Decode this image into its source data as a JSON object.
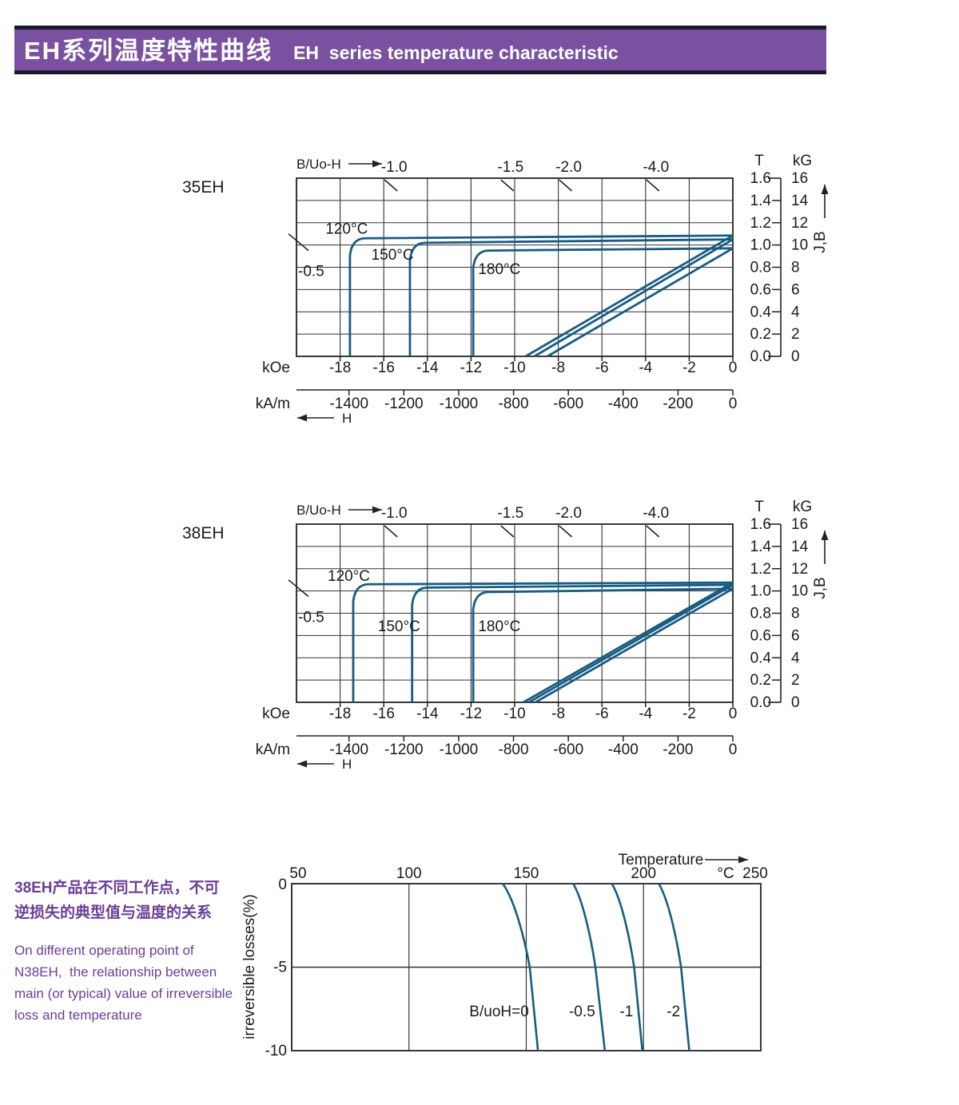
{
  "header": {
    "title_zh": "EH系列温度特性曲线",
    "title_en": "EH  series temperature characteristic"
  },
  "description": {
    "zh_lines": [
      "38EH产品在不同工作点，不可",
      "逆损失的典型值与温度的关系"
    ],
    "en_lines": [
      "On different operating point of",
      "N38EH,  the relationship between",
      "main (or typical) value of irreversible",
      "loss and temperature"
    ]
  },
  "colors": {
    "banner_bg": "#7A51A0",
    "banner_border": "#1A1A2E",
    "curve": "#175C82",
    "grid": "#333333",
    "axis": "#222222",
    "purple_text": "#6B3E98"
  },
  "chart_data": [
    {
      "type": "line",
      "id": "demag-35eh",
      "title": "35EH",
      "top_axis_label": "B/Uo-H",
      "xlim": [
        -20,
        0
      ],
      "ylim": [
        0,
        1.6
      ],
      "x_grid_step_koe": 2,
      "y_grid_step_t": 0.2,
      "load_line_labels": [
        "-1.0",
        "-1.5",
        "-2.0",
        "-4.0"
      ],
      "edge_load_line_label": "-0.5",
      "x_axis": {
        "unit_primary": "kOe",
        "ticks_primary": [
          "-18",
          "-16",
          "-14",
          "-12",
          "-10",
          "-8",
          "-6",
          "-4",
          "-2",
          "0"
        ],
        "unit_secondary": "kA/m",
        "ticks_secondary": [
          "-1400",
          "-1200",
          "-1000",
          "-800",
          "-600",
          "-400",
          "-200",
          "0"
        ],
        "arrow_label": "H"
      },
      "right_axis": {
        "unit_t": "T",
        "ticks_t": [
          "1.6",
          "1.4",
          "1.2",
          "1.0",
          "0.8",
          "0.6",
          "0.4",
          "0.2",
          "0.0"
        ],
        "unit_kg": "kG",
        "ticks_kg": [
          "16",
          "14",
          "12",
          "10",
          "8",
          "6",
          "4",
          "2",
          "0"
        ],
        "arrow_label": "J,B"
      },
      "curves": [
        {
          "label": "120°C",
          "br_knee_T": 1.06,
          "br_at_h0_T": 1.085,
          "hcj_koe": -17.55,
          "b_line_x0_koe": -9.5,
          "label_pos": [
            -17.7,
            1.15
          ]
        },
        {
          "label": "150°C",
          "br_knee_T": 1.02,
          "br_at_h0_T": 1.05,
          "hcj_koe": -14.8,
          "b_line_x0_koe": -9.1,
          "label_pos": [
            -15.6,
            0.92
          ]
        },
        {
          "label": "180°C",
          "br_knee_T": 0.95,
          "br_at_h0_T": 0.97,
          "hcj_koe": -11.9,
          "b_line_x0_koe": -8.5,
          "label_pos": [
            -10.7,
            0.79
          ]
        }
      ]
    },
    {
      "type": "line",
      "id": "demag-38eh",
      "title": "38EH",
      "top_axis_label": "B/Uo-H",
      "xlim": [
        -20,
        0
      ],
      "ylim": [
        0,
        1.6
      ],
      "x_grid_step_koe": 2,
      "y_grid_step_t": 0.2,
      "load_line_labels": [
        "-1.0",
        "-1.5",
        "-2.0",
        "-4.0"
      ],
      "edge_load_line_label": "-0.5",
      "x_axis": {
        "unit_primary": "kOe",
        "ticks_primary": [
          "-18",
          "-16",
          "-14",
          "-12",
          "-10",
          "-8",
          "-6",
          "-4",
          "-2",
          "0"
        ],
        "unit_secondary": "kA/m",
        "ticks_secondary": [
          "-1400",
          "-1200",
          "-1000",
          "-800",
          "-600",
          "-400",
          "-200",
          "0"
        ],
        "arrow_label": "H"
      },
      "right_axis": {
        "unit_t": "T",
        "ticks_t": [
          "1.6",
          "1.4",
          "1.2",
          "1.0",
          "0.8",
          "0.6",
          "0.4",
          "0.2",
          "0.0"
        ],
        "unit_kg": "kG",
        "ticks_kg": [
          "16",
          "14",
          "12",
          "10",
          "8",
          "6",
          "4",
          "2",
          "0"
        ],
        "arrow_label": "J,B"
      },
      "curves": [
        {
          "label": "120°C",
          "br_knee_T": 1.06,
          "br_at_h0_T": 1.075,
          "hcj_koe": -17.4,
          "b_line_x0_koe": -9.6,
          "label_pos": [
            -17.6,
            1.14
          ]
        },
        {
          "label": "150°C",
          "br_knee_T": 1.03,
          "br_at_h0_T": 1.055,
          "hcj_koe": -14.7,
          "b_line_x0_koe": -9.35,
          "label_pos": [
            -15.3,
            0.69
          ]
        },
        {
          "label": "180°C",
          "br_knee_T": 0.99,
          "br_at_h0_T": 1.02,
          "hcj_koe": -11.9,
          "b_line_x0_koe": -9.05,
          "label_pos": [
            -10.7,
            0.69
          ]
        }
      ]
    },
    {
      "type": "line",
      "id": "irreversible-loss",
      "x_label": "Temperature",
      "x_unit": "°C",
      "y_label": "irreversible  losses(%)",
      "xlim": [
        50,
        250
      ],
      "ylim": [
        -10,
        0
      ],
      "x_ticks": [
        "50",
        "100",
        "150",
        "200",
        "250"
      ],
      "y_ticks": [
        "0",
        "-5",
        "-10"
      ],
      "x_grid_lines": [
        100,
        150,
        200
      ],
      "y_grid_lines": [
        -5
      ],
      "curve_label_y_pct": -7.6,
      "curves": [
        {
          "label": "B/uoH=0",
          "points": [
            [
              140,
              0
            ],
            [
              151.5,
              -5
            ],
            [
              155,
              -10
            ]
          ]
        },
        {
          "label": "-0.5",
          "points": [
            [
              170,
              0
            ],
            [
              179.5,
              -5
            ],
            [
              183.5,
              -10
            ]
          ]
        },
        {
          "label": "-1",
          "points": [
            [
              186.5,
              0
            ],
            [
              196,
              -5
            ],
            [
              199.5,
              -10
            ]
          ]
        },
        {
          "label": "-2",
          "points": [
            [
              206.5,
              0
            ],
            [
              216,
              -5
            ],
            [
              219.5,
              -10
            ]
          ]
        }
      ]
    }
  ]
}
